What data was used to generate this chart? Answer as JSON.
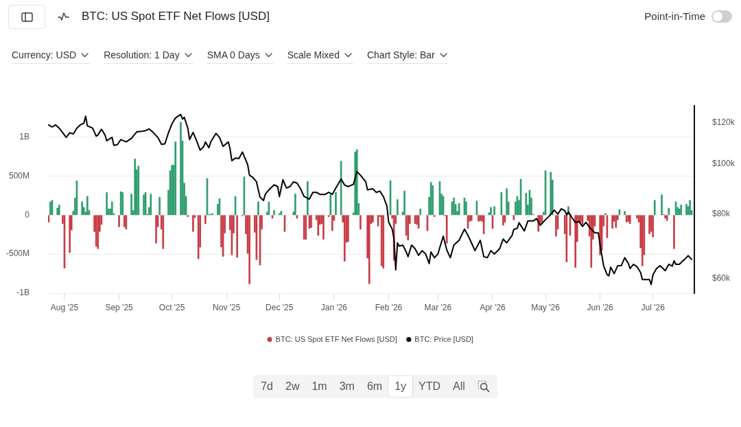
{
  "chart_data": {
    "type": "bar",
    "title": "BTC: US Spot ETF Net Flows [USD]",
    "xlim": [
      "2025-07-22T16:00",
      "2026-07-24T12:00"
    ],
    "xticks": [
      {
        "value": "2025-08-01",
        "label": "Aug '25"
      },
      {
        "value": "2025-09-01",
        "label": "Sep '25"
      },
      {
        "value": "2025-10-01",
        "label": "Oct '25"
      },
      {
        "value": "2025-11-01",
        "label": "Nov '25"
      },
      {
        "value": "2025-12-01",
        "label": "Dec '25"
      },
      {
        "value": "2026-01-01",
        "label": "Jan '26"
      },
      {
        "value": "2026-02-01",
        "label": "Feb '26"
      },
      {
        "value": "2026-03-01",
        "label": "Mar '26"
      },
      {
        "value": "2026-04-01",
        "label": "Apr '26"
      },
      {
        "value": "2026-05-01",
        "label": "May '26"
      },
      {
        "value": "2026-06-01",
        "label": "Jun '26"
      },
      {
        "value": "2026-07-01",
        "label": "Jul '26"
      }
    ],
    "ylim": [
      -1000000000,
      1400000000
    ],
    "yticks": [
      {
        "value": -1000000000,
        "label": "-1B"
      },
      {
        "value": -500000000,
        "label": "-500M"
      },
      0,
      {
        "value": 500000000,
        "label": "500M"
      },
      {
        "value": 1000000000,
        "label": "1B"
      }
    ],
    "y2lim": [
      56300,
      129400
    ],
    "y2ticks": [
      {
        "value": 60000,
        "label": "$60k"
      },
      {
        "value": 80000,
        "label": "$80k"
      },
      {
        "value": 100000,
        "label": "$100k"
      },
      {
        "value": 120000,
        "label": "$120k"
      }
    ],
    "log": "y2",
    "grid": "y",
    "legend": "bottom",
    "annotations": [
      "Point-in-Time",
      "Currency: USD",
      "Resolution: 1 Day",
      "SMA 0 Days",
      "Scale Mixed",
      "Chart Style: Bar",
      "7d",
      "2w",
      "1m",
      "3m",
      "6m",
      "1y",
      "YTD",
      "All"
    ],
    "series": [
      {
        "name": "BTC: US Spot ETF Net Flows [USD]",
        "x": [
          "2025-07-23",
          "2025-07-24",
          "2025-07-25",
          "2025-07-28",
          "2025-07-29",
          "2025-07-31",
          "2025-08-01",
          "2025-08-04",
          "2025-08-05",
          "2025-08-06",
          "2025-08-07",
          "2025-08-08",
          "2025-08-11",
          "2025-08-12",
          "2025-08-13",
          "2025-08-14",
          "2025-08-15",
          "2025-08-18",
          "2025-08-19",
          "2025-08-20",
          "2025-08-21",
          "2025-08-22",
          "2025-08-25",
          "2025-08-26",
          "2025-08-27",
          "2025-08-28",
          "2025-08-29",
          "2025-09-01",
          "2025-09-02",
          "2025-09-03",
          "2025-09-04",
          "2025-09-05",
          "2025-09-08",
          "2025-09-09",
          "2025-09-10",
          "2025-09-11",
          "2025-09-12",
          "2025-09-15",
          "2025-09-16",
          "2025-09-17",
          "2025-09-18",
          "2025-09-19",
          "2025-09-22",
          "2025-09-23",
          "2025-09-24",
          "2025-09-25",
          "2025-09-26",
          "2025-09-29",
          "2025-09-30",
          "2025-10-01",
          "2025-10-02",
          "2025-10-03",
          "2025-10-06",
          "2025-10-07",
          "2025-10-08",
          "2025-10-09",
          "2025-10-10",
          "2025-10-13",
          "2025-10-14",
          "2025-10-16",
          "2025-10-17",
          "2025-10-20",
          "2025-10-21",
          "2025-10-22",
          "2025-10-23",
          "2025-10-24",
          "2025-10-27",
          "2025-10-28",
          "2025-10-29",
          "2025-10-30",
          "2025-10-31",
          "2025-11-03",
          "2025-11-04",
          "2025-11-05",
          "2025-11-06",
          "2025-11-07",
          "2025-11-10",
          "2025-11-11",
          "2025-11-12",
          "2025-11-13",
          "2025-11-14",
          "2025-11-17",
          "2025-11-18",
          "2025-11-19",
          "2025-11-20",
          "2025-11-21",
          "2025-11-24",
          "2025-11-25",
          "2025-11-27",
          "2025-11-28",
          "2025-12-01",
          "2025-12-02",
          "2025-12-04",
          "2025-12-09",
          "2025-12-10",
          "2025-12-11",
          "2025-12-15",
          "2025-12-16",
          "2025-12-17",
          "2025-12-18",
          "2025-12-19",
          "2025-12-22",
          "2025-12-23",
          "2025-12-24",
          "2025-12-25",
          "2025-12-26",
          "2025-12-29",
          "2025-12-30",
          "2025-12-31",
          "2026-01-01",
          "2026-01-02",
          "2026-01-05",
          "2026-01-06",
          "2026-01-07",
          "2026-01-08",
          "2026-01-09",
          "2026-01-12",
          "2026-01-13",
          "2026-01-14",
          "2026-01-15",
          "2026-01-16",
          "2026-01-20",
          "2026-01-21",
          "2026-01-22",
          "2026-01-23",
          "2026-01-26",
          "2026-01-27",
          "2026-01-28",
          "2026-01-29",
          "2026-02-02",
          "2026-02-03",
          "2026-02-04",
          "2026-02-05",
          "2026-02-06",
          "2026-02-09",
          "2026-02-10",
          "2026-02-11",
          "2026-02-12",
          "2026-02-13",
          "2026-02-16",
          "2026-02-17",
          "2026-02-18",
          "2026-02-19",
          "2026-02-23",
          "2026-02-24",
          "2026-02-25",
          "2026-02-26",
          "2026-02-27",
          "2026-03-02",
          "2026-03-03",
          "2026-03-04",
          "2026-03-05",
          "2026-03-06",
          "2026-03-09",
          "2026-03-10",
          "2026-03-11",
          "2026-03-12",
          "2026-03-13",
          "2026-03-16",
          "2026-03-17",
          "2026-03-18",
          "2026-03-19",
          "2026-03-20",
          "2026-03-23",
          "2026-03-24",
          "2026-03-25",
          "2026-03-26",
          "2026-03-27",
          "2026-03-30",
          "2026-03-31",
          "2026-04-01",
          "2026-04-02",
          "2026-04-06",
          "2026-04-07",
          "2026-04-08",
          "2026-04-09",
          "2026-04-10",
          "2026-04-13",
          "2026-04-14",
          "2026-04-15",
          "2026-04-16",
          "2026-04-17",
          "2026-04-20",
          "2026-04-21",
          "2026-04-22",
          "2026-04-23",
          "2026-04-24",
          "2026-04-27",
          "2026-04-28",
          "2026-04-29",
          "2026-04-30",
          "2026-05-01",
          "2026-05-04",
          "2026-05-05",
          "2026-05-07",
          "2026-05-08",
          "2026-05-12",
          "2026-05-13",
          "2026-05-14",
          "2026-05-15",
          "2026-05-18",
          "2026-05-19",
          "2026-05-20",
          "2026-05-21",
          "2026-05-22",
          "2026-05-25",
          "2026-05-26",
          "2026-05-27",
          "2026-05-28",
          "2026-05-29",
          "2026-06-01",
          "2026-06-02",
          "2026-06-03",
          "2026-06-04",
          "2026-06-05",
          "2026-06-08",
          "2026-06-09",
          "2026-06-10",
          "2026-06-11",
          "2026-06-12",
          "2026-06-15",
          "2026-06-16",
          "2026-06-17",
          "2026-06-18",
          "2026-06-22",
          "2026-06-23",
          "2026-06-24",
          "2026-06-25",
          "2026-06-26",
          "2026-06-29",
          "2026-06-30",
          "2026-07-01",
          "2026-07-02",
          "2026-07-06",
          "2026-07-07",
          "2026-07-08",
          "2026-07-09",
          "2026-07-10",
          "2026-07-13",
          "2026-07-14",
          "2026-07-15",
          "2026-07-16",
          "2026-07-17",
          "2026-07-20",
          "2026-07-21",
          "2026-07-22",
          "2026-07-23"
        ],
        "values": [
          -90000000,
          170000000,
          190000000,
          90000000,
          130000000,
          -110000000,
          -680000000,
          -480000000,
          -190000000,
          50000000,
          220000000,
          440000000,
          170000000,
          100000000,
          40000000,
          240000000,
          60000000,
          -210000000,
          -400000000,
          -430000000,
          -210000000,
          -120000000,
          290000000,
          80000000,
          80000000,
          170000000,
          20000000,
          -150000000,
          300000000,
          290000000,
          -150000000,
          -180000000,
          270000000,
          60000000,
          720000000,
          580000000,
          630000000,
          260000000,
          290000000,
          10000000,
          100000000,
          270000000,
          -360000000,
          -150000000,
          230000000,
          -180000000,
          -430000000,
          320000000,
          570000000,
          640000000,
          640000000,
          940000000,
          1190000000,
          950000000,
          410000000,
          240000000,
          -20000000,
          -210000000,
          -30000000,
          -560000000,
          -410000000,
          -110000000,
          470000000,
          10000000,
          10000000,
          20000000,
          140000000,
          210000000,
          -410000000,
          -530000000,
          -230000000,
          -190000000,
          -510000000,
          -230000000,
          240000000,
          -540000000,
          -10000000,
          490000000,
          -240000000,
          -490000000,
          -880000000,
          -220000000,
          -570000000,
          170000000,
          -640000000,
          -180000000,
          40000000,
          170000000,
          -40000000,
          60000000,
          20000000,
          50000000,
          -210000000,
          40000000,
          270000000,
          -40000000,
          -310000000,
          -310000000,
          430000000,
          -170000000,
          -160000000,
          -60000000,
          -260000000,
          -120000000,
          -110000000,
          -310000000,
          -20000000,
          260000000,
          -200000000,
          -70000000,
          290000000,
          690000000,
          -90000000,
          -590000000,
          -350000000,
          -340000000,
          30000000,
          810000000,
          840000000,
          150000000,
          -180000000,
          -550000000,
          -880000000,
          -110000000,
          -90000000,
          -140000000,
          -20000000,
          -650000000,
          -680000000,
          440000000,
          -40000000,
          -580000000,
          -110000000,
          200000000,
          40000000,
          310000000,
          -260000000,
          -320000000,
          -110000000,
          -110000000,
          -120000000,
          -170000000,
          80000000,
          -200000000,
          230000000,
          420000000,
          380000000,
          -20000000,
          430000000,
          270000000,
          240000000,
          -10000000,
          -360000000,
          170000000,
          220000000,
          140000000,
          50000000,
          150000000,
          220000000,
          170000000,
          -170000000,
          -80000000,
          -70000000,
          180000000,
          -80000000,
          -70000000,
          -80000000,
          -240000000,
          30000000,
          100000000,
          -170000000,
          110000000,
          290000000,
          -130000000,
          -90000000,
          340000000,
          170000000,
          -60000000,
          170000000,
          240000000,
          190000000,
          460000000,
          280000000,
          130000000,
          320000000,
          220000000,
          10000000,
          -210000000,
          -120000000,
          -90000000,
          40000000,
          570000000,
          550000000,
          450000000,
          -270000000,
          -180000000,
          -240000000,
          -600000000,
          110000000,
          -260000000,
          -670000000,
          -340000000,
          -90000000,
          -90000000,
          -120000000,
          -70000000,
          -270000000,
          -670000000,
          -310000000,
          -140000000,
          -510000000,
          -450000000,
          -140000000,
          20000000,
          -290000000,
          -170000000,
          -80000000,
          -160000000,
          -60000000,
          70000000,
          50000000,
          -90000000,
          -80000000,
          -110000000,
          -40000000,
          -90000000,
          -420000000,
          -650000000,
          -510000000,
          -240000000,
          -210000000,
          -280000000,
          190000000,
          260000000,
          10000000,
          -40000000,
          -70000000,
          90000000,
          -430000000,
          170000000,
          100000000,
          80000000,
          130000000,
          140000000,
          110000000,
          190000000,
          60000000
        ],
        "colors": [
          "#c93c45",
          "#2f9e6e",
          "#2f9e6e",
          "#2f9e6e",
          "#2f9e6e",
          "#c93c45",
          "#c93c45",
          "#c93c45",
          "#c93c45",
          "#2f9e6e",
          "#2f9e6e",
          "#2f9e6e",
          "#2f9e6e",
          "#2f9e6e",
          "#2f9e6e",
          "#2f9e6e",
          "#2f9e6e",
          "#c93c45",
          "#c93c45",
          "#c93c45",
          "#c93c45",
          "#c93c45",
          "#2f9e6e",
          "#2f9e6e",
          "#2f9e6e",
          "#2f9e6e",
          "#2f9e6e",
          "#c93c45",
          "#2f9e6e",
          "#2f9e6e",
          "#c93c45",
          "#c93c45",
          "#2f9e6e",
          "#2f9e6e",
          "#2f9e6e",
          "#2f9e6e",
          "#2f9e6e",
          "#2f9e6e",
          "#2f9e6e",
          "#2f9e6e",
          "#2f9e6e",
          "#2f9e6e",
          "#c93c45",
          "#c93c45",
          "#2f9e6e",
          "#c93c45",
          "#c93c45",
          "#2f9e6e",
          "#2f9e6e",
          "#2f9e6e",
          "#2f9e6e",
          "#2f9e6e",
          "#2f9e6e",
          "#2f9e6e",
          "#2f9e6e",
          "#2f9e6e",
          "#c93c45",
          "#c93c45",
          "#c93c45",
          "#c93c45",
          "#c93c45",
          "#c93c45",
          "#2f9e6e",
          "#2f9e6e",
          "#2f9e6e",
          "#2f9e6e",
          "#2f9e6e",
          "#2f9e6e",
          "#c93c45",
          "#c93c45",
          "#c93c45",
          "#c93c45",
          "#c93c45",
          "#c93c45",
          "#2f9e6e",
          "#c93c45",
          "#c93c45",
          "#2f9e6e",
          "#c93c45",
          "#c93c45",
          "#c93c45",
          "#c93c45",
          "#c93c45",
          "#2f9e6e",
          "#c93c45",
          "#c93c45",
          "#2f9e6e",
          "#2f9e6e",
          "#c93c45",
          "#2f9e6e",
          "#2f9e6e",
          "#2f9e6e",
          "#c93c45",
          "#2f9e6e",
          "#2f9e6e",
          "#c93c45",
          "#c93c45",
          "#c93c45",
          "#2f9e6e",
          "#c93c45",
          "#c93c45",
          "#c93c45",
          "#c93c45",
          "#c93c45",
          "#c93c45",
          "#c93c45",
          "#c93c45",
          "#2f9e6e",
          "#c93c45",
          "#c93c45",
          "#2f9e6e",
          "#2f9e6e",
          "#c93c45",
          "#c93c45",
          "#c93c45",
          "#c93c45",
          "#2f9e6e",
          "#2f9e6e",
          "#2f9e6e",
          "#2f9e6e",
          "#c93c45",
          "#c93c45",
          "#c93c45",
          "#c93c45",
          "#c93c45",
          "#c93c45",
          "#c93c45",
          "#c93c45",
          "#c93c45",
          "#2f9e6e",
          "#c93c45",
          "#c93c45",
          "#c93c45",
          "#2f9e6e",
          "#2f9e6e",
          "#2f9e6e",
          "#c93c45",
          "#c93c45",
          "#c93c45",
          "#c93c45",
          "#c93c45",
          "#c93c45",
          "#2f9e6e",
          "#c93c45",
          "#2f9e6e",
          "#2f9e6e",
          "#2f9e6e",
          "#c93c45",
          "#2f9e6e",
          "#2f9e6e",
          "#2f9e6e",
          "#c93c45",
          "#c93c45",
          "#2f9e6e",
          "#2f9e6e",
          "#2f9e6e",
          "#2f9e6e",
          "#2f9e6e",
          "#2f9e6e",
          "#2f9e6e",
          "#c93c45",
          "#c93c45",
          "#c93c45",
          "#2f9e6e",
          "#c93c45",
          "#c93c45",
          "#c93c45",
          "#c93c45",
          "#2f9e6e",
          "#2f9e6e",
          "#c93c45",
          "#2f9e6e",
          "#2f9e6e",
          "#c93c45",
          "#c93c45",
          "#2f9e6e",
          "#2f9e6e",
          "#c93c45",
          "#2f9e6e",
          "#2f9e6e",
          "#2f9e6e",
          "#2f9e6e",
          "#2f9e6e",
          "#2f9e6e",
          "#2f9e6e",
          "#2f9e6e",
          "#2f9e6e",
          "#c93c45",
          "#c93c45",
          "#c93c45",
          "#2f9e6e",
          "#2f9e6e",
          "#2f9e6e",
          "#2f9e6e",
          "#c93c45",
          "#c93c45",
          "#c93c45",
          "#c93c45",
          "#2f9e6e",
          "#c93c45",
          "#c93c45",
          "#c93c45",
          "#c93c45",
          "#c93c45",
          "#c93c45",
          "#c93c45",
          "#c93c45",
          "#c93c45",
          "#c93c45",
          "#c93c45",
          "#c93c45",
          "#c93c45",
          "#c93c45",
          "#2f9e6e",
          "#c93c45",
          "#c93c45",
          "#c93c45",
          "#c93c45",
          "#c93c45",
          "#2f9e6e",
          "#2f9e6e",
          "#c93c45",
          "#c93c45",
          "#c93c45",
          "#c93c45",
          "#c93c45",
          "#c93c45",
          "#c93c45",
          "#c93c45",
          "#c93c45",
          "#c93c45",
          "#c93c45",
          "#2f9e6e",
          "#2f9e6e",
          "#2f9e6e",
          "#c93c45",
          "#c93c45",
          "#2f9e6e",
          "#c93c45",
          "#2f9e6e",
          "#2f9e6e",
          "#2f9e6e",
          "#2f9e6e",
          "#2f9e6e",
          "#2f9e6e",
          "#2f9e6e",
          "#2f9e6e"
        ]
      },
      {
        "name": "BTC: Price [USD]",
        "type": "line",
        "color": "#000000",
        "axis": "y2",
        "x": [
          "2025-07-23",
          "2025-07-25",
          "2025-07-27",
          "2025-07-29",
          "2025-07-31",
          "2025-08-02",
          "2025-08-04",
          "2025-08-06",
          "2025-08-08",
          "2025-08-10",
          "2025-08-12",
          "2025-08-13",
          "2025-08-14",
          "2025-08-17",
          "2025-08-19",
          "2025-08-20",
          "2025-08-22",
          "2025-08-24",
          "2025-08-25",
          "2025-08-27",
          "2025-08-28",
          "2025-08-29",
          "2025-08-31",
          "2025-09-02",
          "2025-09-05",
          "2025-09-08",
          "2025-09-11",
          "2025-09-14",
          "2025-09-16",
          "2025-09-18",
          "2025-09-20",
          "2025-09-23",
          "2025-09-25",
          "2025-09-27",
          "2025-09-29",
          "2025-10-01",
          "2025-10-03",
          "2025-10-06",
          "2025-10-07",
          "2025-10-08",
          "2025-10-10",
          "2025-10-11",
          "2025-10-13",
          "2025-10-15",
          "2025-10-17",
          "2025-10-19",
          "2025-10-20",
          "2025-10-22",
          "2025-10-23",
          "2025-10-26",
          "2025-10-28",
          "2025-10-30",
          "2025-11-02",
          "2025-11-03",
          "2025-11-04",
          "2025-11-06",
          "2025-11-08",
          "2025-11-10",
          "2025-11-13",
          "2025-11-14",
          "2025-11-16",
          "2025-11-18",
          "2025-11-19",
          "2025-11-20",
          "2025-11-22",
          "2025-11-23",
          "2025-11-25",
          "2025-11-28",
          "2025-11-30",
          "2025-12-01",
          "2025-12-03",
          "2025-12-05",
          "2025-12-07",
          "2025-12-09",
          "2025-12-11",
          "2025-12-13",
          "2025-12-15",
          "2025-12-18",
          "2025-12-20",
          "2025-12-22",
          "2025-12-24",
          "2025-12-27",
          "2025-12-29",
          "2025-12-31",
          "2026-01-02",
          "2026-01-05",
          "2026-01-07",
          "2026-01-09",
          "2026-01-12",
          "2026-01-14",
          "2026-01-16",
          "2026-01-19",
          "2026-01-20",
          "2026-01-23",
          "2026-01-25",
          "2026-01-27",
          "2026-01-29",
          "2026-01-31",
          "2026-02-01",
          "2026-02-03",
          "2026-02-04",
          "2026-02-05",
          "2026-02-06",
          "2026-02-07",
          "2026-02-09",
          "2026-02-11",
          "2026-02-12",
          "2026-02-14",
          "2026-02-16",
          "2026-02-18",
          "2026-02-20",
          "2026-02-22",
          "2026-02-24",
          "2026-02-25",
          "2026-02-27",
          "2026-03-01",
          "2026-03-02",
          "2026-03-04",
          "2026-03-06",
          "2026-03-08",
          "2026-03-10",
          "2026-03-13",
          "2026-03-16",
          "2026-03-18",
          "2026-03-20",
          "2026-03-22",
          "2026-03-25",
          "2026-03-27",
          "2026-03-29",
          "2026-03-31",
          "2026-04-02",
          "2026-04-05",
          "2026-04-07",
          "2026-04-09",
          "2026-04-12",
          "2026-04-13",
          "2026-04-15",
          "2026-04-16",
          "2026-04-19",
          "2026-04-21",
          "2026-04-24",
          "2026-04-26",
          "2026-04-28",
          "2026-05-01",
          "2026-05-03",
          "2026-05-06",
          "2026-05-08",
          "2026-05-10",
          "2026-05-12",
          "2026-05-13",
          "2026-05-14",
          "2026-05-16",
          "2026-05-18",
          "2026-05-20",
          "2026-05-22",
          "2026-05-24",
          "2026-05-26",
          "2026-05-29",
          "2026-05-31",
          "2026-06-01",
          "2026-06-03",
          "2026-06-05",
          "2026-06-06",
          "2026-06-07",
          "2026-06-09",
          "2026-06-11",
          "2026-06-13",
          "2026-06-15",
          "2026-06-17",
          "2026-06-18",
          "2026-06-20",
          "2026-06-22",
          "2026-06-24",
          "2026-06-25",
          "2026-06-27",
          "2026-06-29",
          "2026-06-30",
          "2026-07-01",
          "2026-07-03",
          "2026-07-05",
          "2026-07-08",
          "2026-07-10",
          "2026-07-12",
          "2026-07-13",
          "2026-07-14",
          "2026-07-16",
          "2026-07-18",
          "2026-07-19",
          "2026-07-21",
          "2026-07-23"
        ],
        "values": [
          118900,
          117800,
          118900,
          117200,
          114800,
          112500,
          114800,
          114200,
          117200,
          118900,
          119800,
          123600,
          118400,
          117200,
          113100,
          113700,
          116600,
          113700,
          110800,
          112000,
          112500,
          108600,
          108900,
          111400,
          110300,
          112000,
          115300,
          115600,
          115900,
          116800,
          115300,
          112500,
          109100,
          109300,
          114800,
          119500,
          122600,
          124600,
          122000,
          123000,
          117200,
          111400,
          115000,
          110800,
          106300,
          107900,
          110200,
          107400,
          110200,
          114500,
          112500,
          108100,
          110200,
          106800,
          101400,
          102600,
          102400,
          105400,
          99600,
          95100,
          94100,
          92300,
          89100,
          86200,
          85000,
          87400,
          89100,
          91100,
          90400,
          86500,
          93200,
          89800,
          90400,
          92300,
          91800,
          89500,
          86500,
          85500,
          88100,
          88100,
          87300,
          87300,
          88100,
          87300,
          89800,
          93500,
          91000,
          90400,
          91300,
          96600,
          95100,
          92300,
          89100,
          89500,
          88100,
          88600,
          86500,
          82900,
          77200,
          74800,
          71800,
          62400,
          70400,
          69400,
          69700,
          67600,
          66200,
          69700,
          68600,
          66600,
          68000,
          67000,
          64200,
          67600,
          65900,
          67000,
          68900,
          72500,
          68200,
          65900,
          69700,
          71200,
          74800,
          72800,
          70400,
          68000,
          71200,
          66200,
          65900,
          68000,
          67000,
          68600,
          71600,
          70400,
          72700,
          74700,
          75100,
          77000,
          74200,
          77600,
          77600,
          78400,
          76100,
          78000,
          79200,
          81400,
          80000,
          81900,
          81200,
          79700,
          80800,
          78800,
          77100,
          77400,
          75700,
          77100,
          75400,
          73600,
          73600,
          69700,
          63600,
          61100,
          60800,
          63200,
          61400,
          63600,
          63600,
          65900,
          64300,
          62800,
          64000,
          63300,
          61700,
          59800,
          59800,
          59800,
          58500,
          61100,
          62800,
          63600,
          62200,
          64000,
          63500,
          65000,
          64000,
          64000,
          65000,
          65400,
          66500,
          65400
        ]
      }
    ]
  }
}
